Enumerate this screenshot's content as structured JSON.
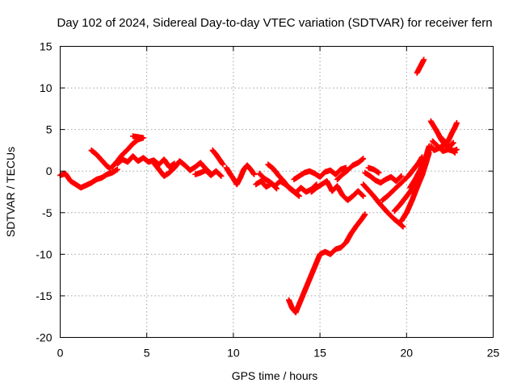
{
  "chart_data": {
    "type": "scatter",
    "title": "Day 102 of 2024, Sidereal Day-to-day VTEC variation (SDTVAR) for receiver fern",
    "xlabel": "GPS time / hours",
    "ylabel": "SDTVAR / TECUs",
    "xlim": [
      0,
      25
    ],
    "ylim": [
      -20,
      15
    ],
    "xticks": [
      0,
      5,
      10,
      15,
      20,
      25
    ],
    "yticks": [
      -20,
      -15,
      -10,
      -5,
      0,
      5,
      10,
      15
    ],
    "grid": true,
    "marker": "+",
    "series": [
      {
        "name": "SDTVAR",
        "color": "#ff0000",
        "segments": [
          [
            [
              0.0,
              -0.5
            ],
            [
              0.3,
              -0.3
            ],
            [
              0.6,
              -1.2
            ],
            [
              0.9,
              -1.6
            ],
            [
              1.2,
              -2.0
            ],
            [
              1.5,
              -1.7
            ],
            [
              1.8,
              -1.4
            ],
            [
              2.1,
              -1.0
            ],
            [
              2.4,
              -0.8
            ],
            [
              2.7,
              -0.4
            ],
            [
              3.0,
              -0.2
            ],
            [
              3.3,
              0.2
            ]
          ],
          [
            [
              1.8,
              2.5
            ],
            [
              2.1,
              2.0
            ],
            [
              2.4,
              1.3
            ],
            [
              2.7,
              0.6
            ],
            [
              2.9,
              0.3
            ]
          ],
          [
            [
              3.0,
              0.5
            ],
            [
              3.3,
              1.2
            ],
            [
              3.6,
              2.0
            ],
            [
              3.9,
              2.6
            ],
            [
              4.2,
              3.3
            ],
            [
              4.5,
              3.8
            ],
            [
              4.8,
              4.0
            ],
            [
              4.2,
              4.2
            ]
          ],
          [
            [
              3.3,
              0.9
            ],
            [
              3.6,
              1.4
            ],
            [
              3.9,
              1.1
            ],
            [
              4.2,
              1.8
            ],
            [
              4.5,
              1.2
            ],
            [
              4.8,
              1.6
            ],
            [
              5.1,
              1.1
            ],
            [
              5.4,
              1.3
            ],
            [
              5.7,
              0.8
            ],
            [
              6.0,
              1.4
            ],
            [
              6.3,
              0.5
            ],
            [
              6.6,
              0.9
            ]
          ],
          [
            [
              5.4,
              1.0
            ],
            [
              5.7,
              0.2
            ],
            [
              6.0,
              -0.6
            ],
            [
              6.3,
              -0.2
            ],
            [
              6.6,
              0.4
            ],
            [
              6.9,
              1.2
            ],
            [
              7.2,
              0.7
            ],
            [
              7.5,
              0.1
            ],
            [
              7.8,
              0.5
            ],
            [
              8.1,
              1.0
            ],
            [
              8.4,
              0.3
            ],
            [
              8.7,
              -0.3
            ]
          ],
          [
            [
              7.8,
              -0.4
            ],
            [
              8.1,
              -0.2
            ],
            [
              8.4,
              0.1
            ],
            [
              8.7,
              -0.5
            ],
            [
              9.0,
              0.0
            ],
            [
              9.3,
              -0.6
            ]
          ],
          [
            [
              8.8,
              2.5
            ],
            [
              9.0,
              2.0
            ],
            [
              9.2,
              1.4
            ],
            [
              9.4,
              0.8
            ]
          ],
          [
            [
              9.6,
              0.4
            ],
            [
              9.8,
              -0.3
            ],
            [
              10.0,
              -0.9
            ],
            [
              10.2,
              -1.6
            ],
            [
              10.4,
              -0.8
            ],
            [
              10.6,
              0.2
            ],
            [
              10.8,
              0.7
            ],
            [
              11.0,
              0.2
            ],
            [
              11.2,
              -0.4
            ]
          ],
          [
            [
              11.5,
              -0.3
            ],
            [
              11.8,
              -0.9
            ],
            [
              12.1,
              -1.3
            ],
            [
              12.4,
              -1.8
            ],
            [
              12.7,
              -1.2
            ],
            [
              13.0,
              -1.6
            ],
            [
              13.3,
              -2.1
            ],
            [
              13.6,
              -2.6
            ],
            [
              13.9,
              -2.0
            ],
            [
              14.2,
              -2.5
            ],
            [
              14.5,
              -2.2
            ],
            [
              14.8,
              -1.6
            ]
          ],
          [
            [
              11.3,
              -1.6
            ],
            [
              11.6,
              -1.2
            ],
            [
              11.9,
              -1.9
            ],
            [
              12.2,
              -1.5
            ],
            [
              12.5,
              -2.1
            ]
          ],
          [
            [
              12.0,
              0.8
            ],
            [
              12.3,
              0.3
            ],
            [
              12.6,
              -0.5
            ],
            [
              12.9,
              -1.2
            ],
            [
              13.2,
              -2.0
            ],
            [
              13.5,
              -2.5
            ],
            [
              13.8,
              -3.0
            ]
          ],
          [
            [
              13.5,
              -1.0
            ],
            [
              13.8,
              -0.6
            ],
            [
              14.1,
              -0.2
            ],
            [
              14.4,
              0.0
            ],
            [
              14.7,
              -0.3
            ],
            [
              15.0,
              -0.7
            ],
            [
              15.3,
              -0.1
            ],
            [
              15.6,
              0.1
            ],
            [
              15.9,
              -0.4
            ],
            [
              16.2,
              0.2
            ],
            [
              16.5,
              0.4
            ]
          ],
          [
            [
              14.5,
              -2.5
            ],
            [
              14.8,
              -2.0
            ],
            [
              15.1,
              -1.6
            ],
            [
              15.4,
              -1.2
            ],
            [
              15.7,
              -2.4
            ],
            [
              16.0,
              -1.8
            ],
            [
              16.3,
              -2.9
            ],
            [
              16.6,
              -3.5
            ],
            [
              16.9,
              -3.0
            ],
            [
              17.2,
              -2.4
            ],
            [
              17.5,
              -3.0
            ]
          ],
          [
            [
              16.0,
              -1.0
            ],
            [
              16.3,
              -0.4
            ],
            [
              16.6,
              0.1
            ],
            [
              16.9,
              0.7
            ],
            [
              17.2,
              1.0
            ],
            [
              17.5,
              1.5
            ]
          ],
          [
            [
              13.2,
              -15.5
            ],
            [
              13.4,
              -16.5
            ],
            [
              13.6,
              -17.0
            ],
            [
              13.8,
              -16.0
            ],
            [
              14.0,
              -15.0
            ],
            [
              14.2,
              -14.0
            ],
            [
              14.4,
              -13.0
            ],
            [
              14.6,
              -12.0
            ],
            [
              14.8,
              -11.0
            ],
            [
              15.0,
              -10.0
            ],
            [
              15.3,
              -9.7
            ],
            [
              15.6,
              -10.0
            ],
            [
              15.9,
              -9.4
            ],
            [
              16.2,
              -9.2
            ],
            [
              16.5,
              -8.6
            ],
            [
              16.8,
              -7.5
            ],
            [
              17.1,
              -6.6
            ],
            [
              17.4,
              -5.8
            ],
            [
              17.6,
              -5.2
            ]
          ],
          [
            [
              17.6,
              -0.2
            ],
            [
              17.9,
              -0.6
            ],
            [
              18.2,
              -1.1
            ],
            [
              18.5,
              -1.4
            ],
            [
              18.8,
              -1.0
            ],
            [
              19.1,
              -0.7
            ],
            [
              19.4,
              -1.2
            ],
            [
              19.7,
              -0.6
            ]
          ],
          [
            [
              17.8,
              0.4
            ],
            [
              18.1,
              0.2
            ],
            [
              18.4,
              -0.2
            ]
          ],
          [
            [
              17.5,
              -1.6
            ],
            [
              17.8,
              -2.3
            ],
            [
              18.1,
              -3.0
            ],
            [
              18.4,
              -3.8
            ],
            [
              18.7,
              -4.5
            ],
            [
              19.0,
              -5.2
            ],
            [
              19.3,
              -5.8
            ],
            [
              19.6,
              -6.3
            ],
            [
              19.8,
              -6.7
            ]
          ],
          [
            [
              18.6,
              -3.5
            ],
            [
              18.9,
              -3.0
            ],
            [
              19.2,
              -2.4
            ],
            [
              19.5,
              -1.8
            ],
            [
              19.8,
              -1.2
            ],
            [
              20.1,
              -0.6
            ],
            [
              20.4,
              0.2
            ],
            [
              20.7,
              1.0
            ],
            [
              20.9,
              1.7
            ]
          ],
          [
            [
              19.3,
              -4.8
            ],
            [
              19.6,
              -4.1
            ],
            [
              19.9,
              -3.3
            ],
            [
              20.2,
              -2.5
            ],
            [
              20.5,
              -1.5
            ],
            [
              20.8,
              -0.3
            ],
            [
              21.0,
              0.8
            ],
            [
              21.2,
              1.8
            ],
            [
              21.3,
              2.8
            ]
          ],
          [
            [
              19.7,
              -6.0
            ],
            [
              20.0,
              -5.0
            ],
            [
              20.3,
              -3.6
            ],
            [
              20.6,
              -2.0
            ],
            [
              20.9,
              -0.5
            ],
            [
              21.1,
              0.8
            ],
            [
              21.3,
              2.2
            ]
          ],
          [
            [
              20.2,
              -2.0
            ],
            [
              20.5,
              -1.0
            ],
            [
              20.8,
              0.2
            ],
            [
              21.1,
              1.6
            ],
            [
              21.3,
              3.0
            ]
          ],
          [
            [
              20.6,
              11.8
            ],
            [
              20.8,
              12.6
            ],
            [
              21.0,
              13.4
            ]
          ],
          [
            [
              21.4,
              3.0
            ],
            [
              21.6,
              2.5
            ],
            [
              21.9,
              2.8
            ],
            [
              22.2,
              3.2
            ],
            [
              22.5,
              3.0
            ],
            [
              22.7,
              3.4
            ]
          ],
          [
            [
              21.4,
              6.0
            ],
            [
              21.6,
              5.3
            ],
            [
              21.8,
              4.6
            ],
            [
              22.0,
              3.8
            ],
            [
              22.2,
              3.2
            ],
            [
              22.4,
              3.6
            ],
            [
              22.6,
              4.5
            ],
            [
              22.8,
              5.3
            ],
            [
              22.9,
              5.8
            ]
          ],
          [
            [
              21.5,
              3.6
            ],
            [
              21.8,
              3.0
            ],
            [
              22.1,
              2.4
            ],
            [
              22.4,
              2.6
            ],
            [
              22.7,
              2.4
            ],
            [
              22.9,
              2.6
            ]
          ],
          [
            [
              21.9,
              4.2
            ],
            [
              22.2,
              3.6
            ],
            [
              22.5,
              2.8
            ],
            [
              22.8,
              2.2
            ]
          ]
        ]
      }
    ]
  }
}
